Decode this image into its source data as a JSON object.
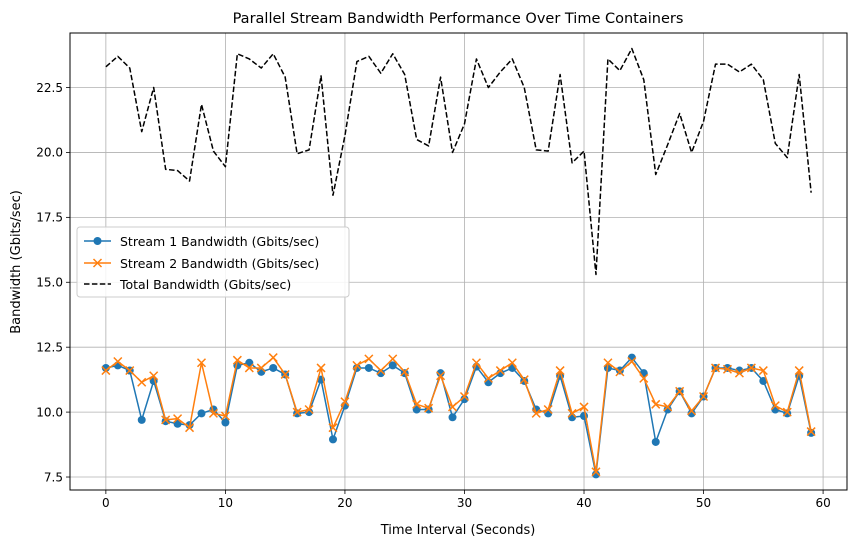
{
  "chart_data": {
    "type": "line",
    "title": "Parallel Stream Bandwidth Performance Over Time Containers",
    "xlabel": "Time Interval (Seconds)",
    "ylabel": "Bandwidth (Gbits/sec)",
    "xlim": [
      -3,
      62
    ],
    "ylim": [
      7,
      24.6
    ],
    "xticks": [
      0,
      10,
      20,
      30,
      40,
      50,
      60
    ],
    "xtick_labels": [
      "0",
      "10",
      "20",
      "30",
      "40",
      "50",
      "60"
    ],
    "yticks": [
      7.5,
      10.0,
      12.5,
      15.0,
      17.5,
      20.0,
      22.5
    ],
    "ytick_labels": [
      "7.5",
      "10.0",
      "12.5",
      "15.0",
      "17.5",
      "20.0",
      "22.5"
    ],
    "grid": true,
    "legend_position": "center-left",
    "x": [
      0,
      1,
      2,
      3,
      4,
      5,
      6,
      7,
      8,
      9,
      10,
      11,
      12,
      13,
      14,
      15,
      16,
      17,
      18,
      19,
      20,
      21,
      22,
      23,
      24,
      25,
      26,
      27,
      28,
      29,
      30,
      31,
      32,
      33,
      34,
      35,
      36,
      37,
      38,
      39,
      40,
      41,
      42,
      43,
      44,
      45,
      46,
      47,
      48,
      49,
      50,
      51,
      52,
      53,
      54,
      55,
      56,
      57,
      58,
      59
    ],
    "series": [
      {
        "name": "Stream 1 Bandwidth (Gbits/sec)",
        "color": "#1f77b4",
        "marker": "circle",
        "linestyle": "solid",
        "values": [
          11.7,
          11.8,
          11.6,
          9.7,
          11.2,
          9.65,
          9.55,
          9.5,
          9.95,
          10.1,
          9.6,
          11.8,
          11.9,
          11.55,
          11.7,
          11.45,
          9.95,
          10.0,
          11.25,
          8.95,
          10.25,
          11.7,
          11.7,
          11.5,
          11.8,
          11.5,
          10.1,
          10.1,
          11.5,
          9.8,
          10.5,
          11.75,
          11.15,
          11.5,
          11.7,
          11.2,
          10.1,
          9.95,
          11.4,
          9.8,
          9.85,
          7.6,
          11.7,
          11.6,
          12.1,
          11.5,
          8.85,
          10.1,
          10.8,
          9.95,
          10.6,
          11.7,
          11.7,
          11.6,
          11.7,
          11.2,
          10.1,
          9.95,
          11.4,
          9.2
        ]
      },
      {
        "name": "Stream 2 Bandwidth (Gbits/sec)",
        "color": "#ff7f0e",
        "marker": "x",
        "linestyle": "solid",
        "values": [
          11.6,
          11.95,
          11.6,
          11.15,
          11.4,
          9.7,
          9.75,
          9.4,
          11.9,
          9.95,
          9.85,
          12.0,
          11.7,
          11.7,
          12.1,
          11.45,
          10.0,
          10.1,
          11.7,
          9.4,
          10.4,
          11.8,
          12.05,
          11.6,
          12.05,
          11.55,
          10.3,
          10.15,
          11.4,
          10.2,
          10.6,
          11.9,
          11.3,
          11.6,
          11.9,
          11.25,
          9.95,
          10.1,
          11.6,
          9.95,
          10.2,
          7.7,
          11.9,
          11.55,
          11.95,
          11.3,
          10.3,
          10.2,
          10.8,
          10.05,
          10.6,
          11.7,
          11.65,
          11.5,
          11.7,
          11.6,
          10.25,
          10.0,
          11.6,
          9.25
        ]
      },
      {
        "name": "Total Bandwidth (Gbits/sec)",
        "color": "#000000",
        "marker": "none",
        "linestyle": "dashed",
        "values": [
          23.3,
          23.7,
          23.25,
          20.8,
          22.5,
          19.35,
          19.3,
          18.9,
          21.85,
          20.05,
          19.45,
          23.8,
          23.6,
          23.25,
          23.8,
          22.9,
          19.95,
          20.1,
          22.95,
          18.35,
          20.65,
          23.5,
          23.7,
          23.05,
          23.8,
          23.0,
          20.5,
          20.25,
          22.9,
          20.0,
          21.1,
          23.6,
          22.5,
          23.1,
          23.6,
          22.5,
          20.1,
          20.05,
          23.0,
          19.6,
          20.05,
          15.3,
          23.6,
          23.15,
          24.0,
          22.8,
          19.15,
          20.3,
          21.5,
          20.0,
          21.2,
          23.4,
          23.4,
          23.1,
          23.4,
          22.8,
          20.35,
          19.8,
          23.0,
          18.45
        ]
      }
    ]
  }
}
